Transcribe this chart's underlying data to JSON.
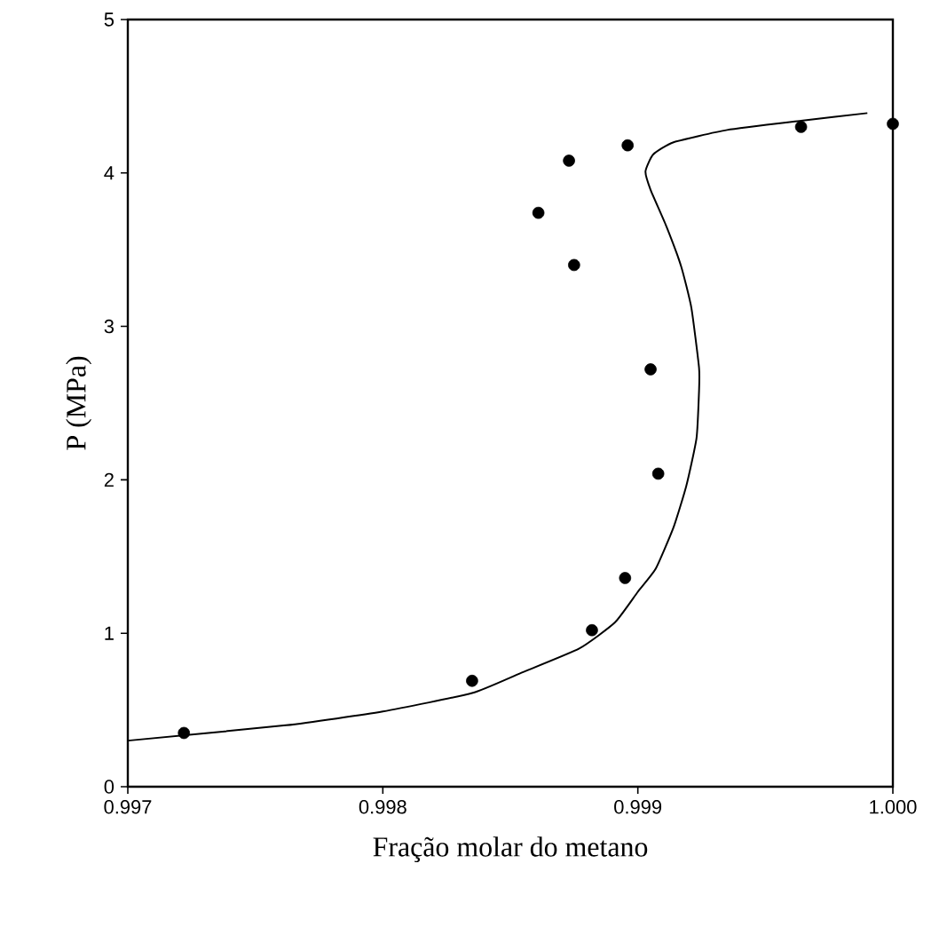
{
  "chart_data": {
    "type": "scatter",
    "xlabel": "Fração molar do metano",
    "ylabel": "P (MPa)",
    "xlim": [
      0.997,
      1.0
    ],
    "ylim": [
      0,
      5
    ],
    "xticks": [
      0.997,
      0.998,
      0.999,
      {
        "value": 1.0,
        "label": "1.000"
      }
    ],
    "yticks": [
      0,
      1,
      2,
      3,
      4,
      5
    ],
    "grid": false,
    "series": [
      {
        "color": "#000000",
        "marker": "circle",
        "x": [
          0.99722,
          0.99835,
          0.99882,
          0.99895,
          0.99908,
          0.99905,
          0.99875,
          0.99861,
          0.99873,
          0.99896,
          0.99964,
          1.0
        ],
        "values": [
          0.35,
          0.69,
          1.02,
          1.36,
          2.04,
          2.72,
          3.4,
          3.74,
          4.08,
          4.18,
          4.3,
          4.32
        ]
      },
      {
        "type": "line",
        "color": "#000000",
        "marker": "none",
        "line_style": "solid",
        "x": [
          0.997,
          0.99762,
          0.998,
          0.99835,
          0.99854,
          0.99877,
          0.99891,
          0.999,
          0.99907,
          0.99914,
          0.99919,
          0.99923,
          0.99924,
          0.99924,
          0.99921,
          0.99917,
          0.99911,
          0.99905,
          0.99903,
          0.99906,
          0.99914,
          0.99935,
          0.99964,
          0.9999
        ],
        "values": [
          0.3,
          0.4,
          0.49,
          0.61,
          0.74,
          0.9,
          1.07,
          1.27,
          1.42,
          1.69,
          1.96,
          2.27,
          2.58,
          2.73,
          3.12,
          3.39,
          3.66,
          3.89,
          4.01,
          4.12,
          4.2,
          4.28,
          4.34,
          4.39
        ]
      }
    ]
  }
}
